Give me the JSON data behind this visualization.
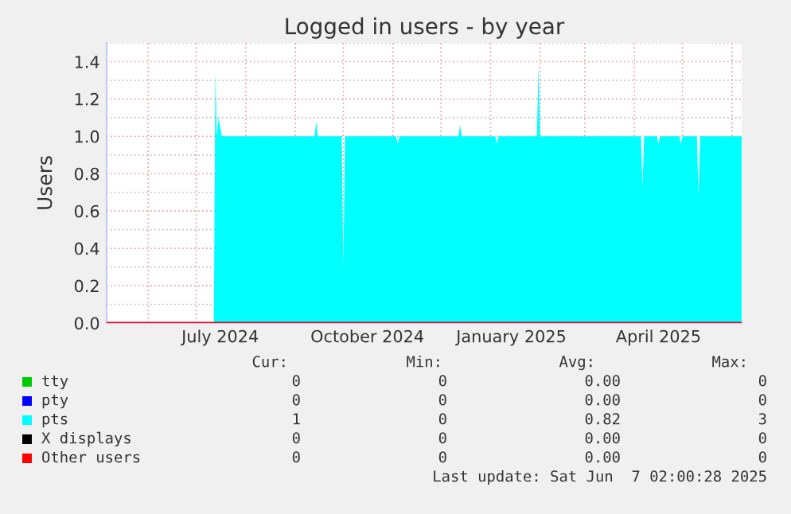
{
  "chart_data": {
    "type": "area",
    "title": "Logged in users - by year",
    "ylabel": "Users",
    "x": [
      "2024-05-06",
      "2024-07-12",
      "2024-07-13",
      "2024-07-14",
      "2024-07-15",
      "2024-07-17",
      "2024-09-13",
      "2024-09-14",
      "2024-09-15",
      "2024-09-30",
      "2024-10-01",
      "2024-10-02",
      "2024-11-03",
      "2024-11-04",
      "2024-11-05",
      "2024-12-12",
      "2024-12-13",
      "2024-12-14",
      "2025-01-04",
      "2025-01-05",
      "2025-01-06",
      "2025-01-30",
      "2025-01-31",
      "2025-02-01",
      "2025-04-05",
      "2025-04-06",
      "2025-04-07",
      "2025-04-15",
      "2025-04-16",
      "2025-04-17",
      "2025-04-29",
      "2025-04-30",
      "2025-05-01",
      "2025-05-10",
      "2025-05-11",
      "2025-05-12",
      "2025-06-07"
    ],
    "series": [
      {
        "name": "tty",
        "type": "line",
        "color": "#00cc00",
        "values": [
          null,
          null,
          null,
          null,
          null,
          null,
          null,
          null,
          null,
          null,
          null,
          null,
          null,
          null,
          null,
          null,
          null,
          null,
          null,
          null,
          null,
          null,
          null,
          null,
          null,
          null,
          null,
          null,
          null,
          null,
          null,
          null,
          null,
          null,
          null,
          null,
          null
        ]
      },
      {
        "name": "pty",
        "type": "line",
        "color": "#0000ff",
        "values": [
          null,
          null,
          null,
          null,
          null,
          null,
          null,
          null,
          null,
          null,
          null,
          null,
          null,
          null,
          null,
          null,
          null,
          null,
          null,
          null,
          null,
          null,
          null,
          null,
          null,
          null,
          null,
          null,
          null,
          null,
          null,
          null,
          null,
          null,
          null,
          null,
          null
        ]
      },
      {
        "name": "pts",
        "color": "#00ffff",
        "values": [
          0,
          0,
          1.35,
          1.0,
          1.1,
          1.0,
          1.0,
          1.08,
          1.0,
          1.0,
          0.3,
          1.0,
          1.0,
          0.96,
          1.0,
          1.0,
          1.06,
          1.0,
          1.0,
          0.96,
          1.0,
          1.0,
          1.38,
          1.0,
          1.0,
          0.73,
          1.0,
          1.0,
          0.96,
          1.0,
          1.0,
          0.96,
          1.0,
          1.0,
          0.68,
          1.0,
          1.0
        ]
      },
      {
        "name": "X displays",
        "type": "line",
        "color": "#000000",
        "values": [
          null,
          null,
          null,
          null,
          null,
          null,
          null,
          null,
          null,
          null,
          null,
          null,
          null,
          null,
          null,
          null,
          null,
          null,
          null,
          null,
          null,
          null,
          null,
          null,
          null,
          null,
          null,
          null,
          null,
          null,
          null,
          null,
          null,
          null,
          null,
          null,
          null
        ]
      },
      {
        "name": "Other users",
        "type": "line",
        "color": "#ff0000",
        "values": [
          0,
          0,
          0,
          0,
          0,
          0,
          0,
          0,
          0,
          0,
          0,
          0,
          0,
          0,
          0,
          0,
          0,
          0,
          0,
          0,
          0,
          0,
          0,
          0,
          0,
          0,
          0,
          0,
          0,
          0,
          0,
          0,
          0,
          0,
          0,
          0,
          0
        ]
      }
    ],
    "xlim": [
      "2024-05-06",
      "2025-06-07"
    ],
    "xticks": [
      {
        "value": "2024-06-01",
        "label": null
      },
      {
        "value": "2024-07-01",
        "label": null
      },
      {
        "value": "2024-07-16",
        "label": "July 2024"
      },
      {
        "value": "2024-08-01",
        "label": null
      },
      {
        "value": "2024-09-01",
        "label": null
      },
      {
        "value": "2024-10-01",
        "label": null
      },
      {
        "value": "2024-10-16",
        "label": "October 2024"
      },
      {
        "value": "2024-11-01",
        "label": null
      },
      {
        "value": "2024-12-01",
        "label": null
      },
      {
        "value": "2025-01-01",
        "label": null
      },
      {
        "value": "2025-01-14",
        "label": "January 2025"
      },
      {
        "value": "2025-02-01",
        "label": null
      },
      {
        "value": "2025-03-01",
        "label": null
      },
      {
        "value": "2025-04-01",
        "label": null
      },
      {
        "value": "2025-04-16",
        "label": "April 2025"
      },
      {
        "value": "2025-05-01",
        "label": null
      },
      {
        "value": "2025-06-01",
        "label": null
      }
    ],
    "ylim": [
      0,
      1.5
    ],
    "yticks": [
      {
        "value": 0,
        "label": "0.0"
      },
      {
        "value": 0.1,
        "label": null
      },
      {
        "value": 0.2,
        "label": "0.2"
      },
      {
        "value": 0.3,
        "label": null
      },
      {
        "value": 0.4,
        "label": "0.4"
      },
      {
        "value": 0.5,
        "label": null
      },
      {
        "value": 0.6,
        "label": "0.6"
      },
      {
        "value": 0.7,
        "label": null
      },
      {
        "value": 0.8,
        "label": "0.8"
      },
      {
        "value": 0.9,
        "label": null
      },
      {
        "value": 1.0,
        "label": "1.0"
      },
      {
        "value": 1.1,
        "label": null
      },
      {
        "value": 1.2,
        "label": "1.2"
      },
      {
        "value": 1.3,
        "label": null
      },
      {
        "value": 1.4,
        "label": "1.4"
      },
      {
        "value": 1.5,
        "label": null
      }
    ],
    "grid": true,
    "legend": "bottom",
    "annotations": [
      "Cur:",
      "Min:",
      "Avg:",
      "Max:",
      "0",
      "0",
      "0.00",
      "0",
      "0",
      "0",
      "0.00",
      "0",
      "1",
      "0",
      "0.82",
      "3",
      "0",
      "0",
      "0.00",
      "0",
      "0",
      "0",
      "0.00",
      "0",
      "Last update: Sat Jun  7 02:00:28 2025"
    ]
  }
}
